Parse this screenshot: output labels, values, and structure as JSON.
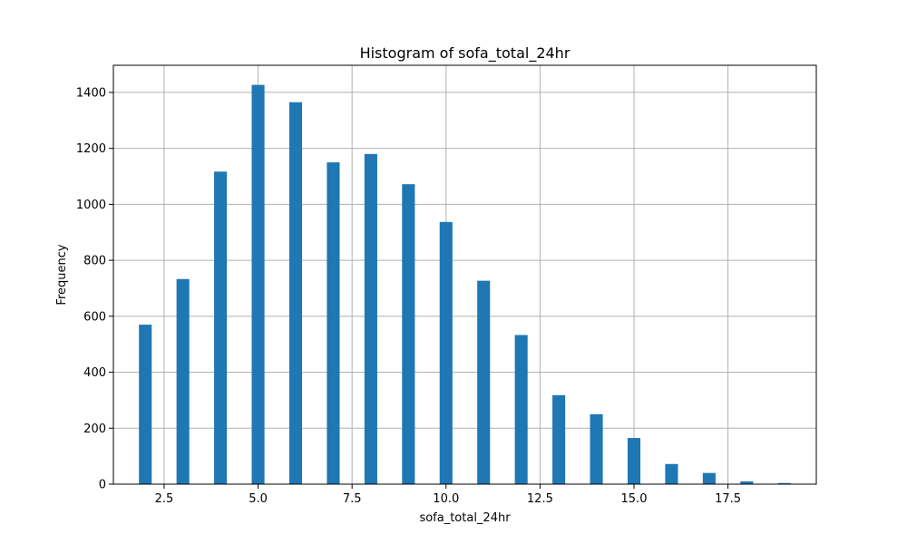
{
  "chart_data": {
    "type": "bar",
    "title": "Histogram of sofa_total_24hr",
    "xlabel": "sofa_total_24hr",
    "ylabel": "Frequency",
    "xlim": [
      1.15,
      19.85
    ],
    "ylim": [
      0,
      1497
    ],
    "grid": true,
    "bar_color": "#1f77b4",
    "bar_width": 0.34,
    "x_ticks": [
      2.5,
      5.0,
      7.5,
      10.0,
      12.5,
      15.0,
      17.5
    ],
    "x_tick_labels": [
      "2.5",
      "5.0",
      "7.5",
      "10.0",
      "12.5",
      "15.0",
      "17.5"
    ],
    "y_ticks": [
      0,
      200,
      400,
      600,
      800,
      1000,
      1200,
      1400
    ],
    "y_tick_labels": [
      "0",
      "200",
      "400",
      "600",
      "800",
      "1000",
      "1200",
      "1400"
    ],
    "series": [
      {
        "x": [
          2,
          3,
          4,
          5,
          6,
          7,
          8,
          9,
          10,
          11,
          12,
          13,
          14,
          15,
          16,
          17,
          18,
          19
        ],
        "values": [
          570,
          733,
          1117,
          1427,
          1365,
          1150,
          1180,
          1072,
          937,
          727,
          533,
          318,
          250,
          165,
          72,
          40,
          10,
          4
        ]
      }
    ]
  }
}
